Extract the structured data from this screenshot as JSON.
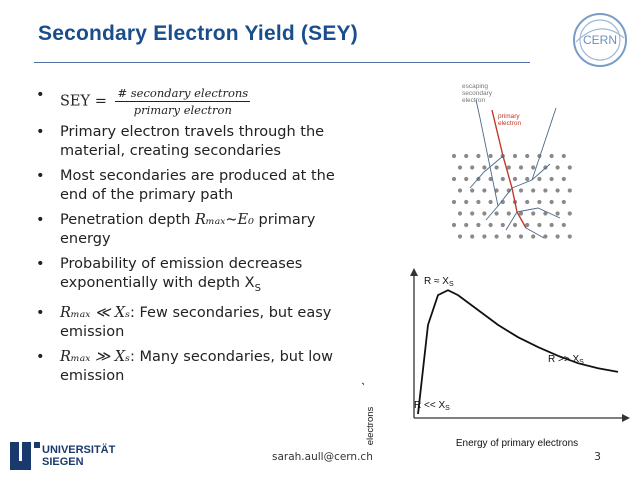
{
  "header": {
    "title": "Secondary Electron Yield (SEY)",
    "logo_text": "CERN"
  },
  "bullets": [
    {
      "prefix": "SEY =",
      "numerator": "# secondary electrons",
      "denominator": "primary electron"
    },
    {
      "text": "Primary electron travels through the material, creating secondaries"
    },
    {
      "text": "Most secondaries are produced at the end of the primary path"
    },
    {
      "pre": "Penetration depth ",
      "math": "Rₘₐₓ~E₀",
      "post": " primary energy"
    },
    {
      "pre": "Probability of emission decreases exponentially with depth X",
      "sub": "S"
    },
    {
      "math": "Rₘₐₓ ≪ Xₛ",
      "post": ": Few secondaries, but easy emission"
    },
    {
      "math": "Rₘₐₓ ≫ Xₛ",
      "post": ": Many secondaries, but low emission"
    }
  ],
  "diagram": {
    "label_escaping": "escaping secondary electron",
    "label_primary": "primary electron"
  },
  "chart_data": {
    "type": "line",
    "xlabel": "Energy of primary electrons",
    "ylabel": "Number of secondary electrons",
    "annotations": [
      "R ≈ Xₛ",
      "R >> Xₛ",
      "R << Xₛ"
    ],
    "x": [
      0,
      0.5,
      1,
      1.5,
      2,
      3,
      4,
      5,
      6,
      7,
      8,
      9,
      10
    ],
    "y": [
      0,
      0.72,
      0.96,
      1.0,
      0.96,
      0.84,
      0.72,
      0.62,
      0.54,
      0.47,
      0.41,
      0.37,
      0.34
    ],
    "grid": false
  },
  "footer": {
    "university": "UNIVERSITÄT SIEGEN",
    "email": "sarah.aull@cern.ch",
    "page": "3"
  },
  "colors": {
    "title": "#1a4d8c",
    "primary_track": "#c0392b",
    "atoms": "#8a8a8a",
    "secondary_track": "#4a6a8a"
  }
}
